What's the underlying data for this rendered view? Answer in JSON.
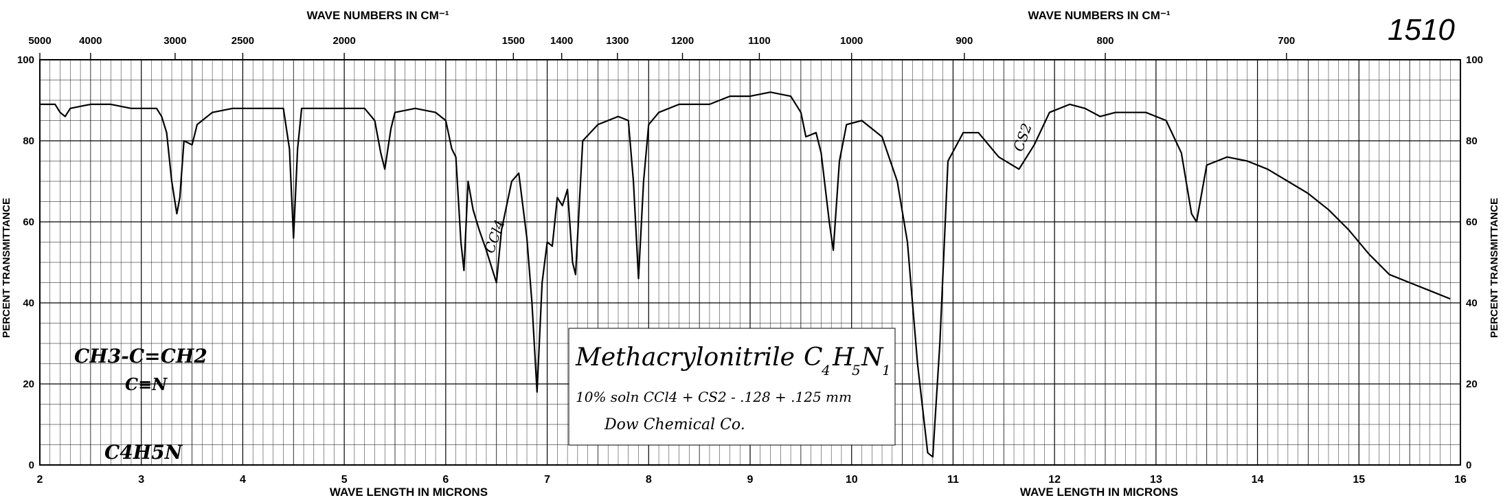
{
  "chart_data": {
    "type": "line",
    "title": "Methacrylonitrile C4H5N1",
    "x_unit_label_bottom": "WAVE LENGTH IN MICRONS",
    "x_unit_label_top": "WAVE NUMBERS IN CM⁻¹",
    "ylabel_left": "PERCENT TRANSMITTANCE",
    "ylabel_right": "PERCENT TRANSMITTANCE",
    "xlim": [
      2,
      16
    ],
    "ylim": [
      0,
      100
    ],
    "grid": true,
    "x_ticks": [
      2,
      3,
      4,
      5,
      6,
      7,
      8,
      9,
      10,
      11,
      12,
      13,
      14,
      15,
      16
    ],
    "y_ticks_left": [
      0,
      20,
      40,
      60,
      80,
      100
    ],
    "y_ticks_right": [
      0,
      20,
      40,
      60,
      80,
      100
    ],
    "top_ticks": [
      {
        "label": "5000",
        "wavenumber": 5000
      },
      {
        "label": "4000",
        "wavenumber": 4000
      },
      {
        "label": "3000",
        "wavenumber": 3000
      },
      {
        "label": "2500",
        "wavenumber": 2500
      },
      {
        "label": "2000",
        "wavenumber": 2000
      },
      {
        "label": "1500",
        "wavenumber": 1500
      },
      {
        "label": "1400",
        "wavenumber": 1400
      },
      {
        "label": "1300",
        "wavenumber": 1300
      },
      {
        "label": "1200",
        "wavenumber": 1200
      },
      {
        "label": "1100",
        "wavenumber": 1100
      },
      {
        "label": "1000",
        "wavenumber": 1000
      },
      {
        "label": "900",
        "wavenumber": 900
      },
      {
        "label": "800",
        "wavenumber": 800
      },
      {
        "label": "700",
        "wavenumber": 700
      }
    ],
    "series": [
      {
        "points": [
          [
            2.0,
            89
          ],
          [
            2.15,
            89
          ],
          [
            2.2,
            87
          ],
          [
            2.25,
            86
          ],
          [
            2.3,
            88
          ],
          [
            2.5,
            89
          ],
          [
            2.7,
            89
          ],
          [
            2.9,
            88
          ],
          [
            3.15,
            88
          ],
          [
            3.2,
            86
          ],
          [
            3.25,
            82
          ],
          [
            3.3,
            70
          ],
          [
            3.35,
            62
          ],
          [
            3.38,
            66
          ],
          [
            3.42,
            80
          ],
          [
            3.5,
            79
          ],
          [
            3.55,
            84
          ],
          [
            3.7,
            87
          ],
          [
            3.9,
            88
          ],
          [
            4.1,
            88
          ],
          [
            4.3,
            88
          ],
          [
            4.4,
            88
          ],
          [
            4.46,
            78
          ],
          [
            4.5,
            56
          ],
          [
            4.54,
            78
          ],
          [
            4.58,
            88
          ],
          [
            4.8,
            88
          ],
          [
            5.0,
            88
          ],
          [
            5.2,
            88
          ],
          [
            5.3,
            85
          ],
          [
            5.36,
            77
          ],
          [
            5.4,
            73
          ],
          [
            5.46,
            83
          ],
          [
            5.5,
            87
          ],
          [
            5.7,
            88
          ],
          [
            5.9,
            87
          ],
          [
            6.0,
            85
          ],
          [
            6.06,
            78
          ],
          [
            6.1,
            76
          ],
          [
            6.15,
            55
          ],
          [
            6.18,
            48
          ],
          [
            6.22,
            70
          ],
          [
            6.27,
            63
          ],
          [
            6.33,
            58
          ],
          [
            6.4,
            53
          ],
          [
            6.45,
            49
          ],
          [
            6.5,
            45
          ],
          [
            6.55,
            58
          ],
          [
            6.65,
            70
          ],
          [
            6.72,
            72
          ],
          [
            6.8,
            56
          ],
          [
            6.85,
            40
          ],
          [
            6.9,
            18
          ],
          [
            6.95,
            45
          ],
          [
            7.0,
            55
          ],
          [
            7.05,
            54
          ],
          [
            7.1,
            66
          ],
          [
            7.15,
            64
          ],
          [
            7.2,
            68
          ],
          [
            7.25,
            50
          ],
          [
            7.28,
            47
          ],
          [
            7.35,
            80
          ],
          [
            7.5,
            84
          ],
          [
            7.7,
            86
          ],
          [
            7.8,
            85
          ],
          [
            7.85,
            70
          ],
          [
            7.9,
            46
          ],
          [
            7.95,
            70
          ],
          [
            8.0,
            84
          ],
          [
            8.1,
            87
          ],
          [
            8.3,
            89
          ],
          [
            8.6,
            89
          ],
          [
            8.8,
            91
          ],
          [
            9.0,
            91
          ],
          [
            9.2,
            92
          ],
          [
            9.4,
            91
          ],
          [
            9.5,
            87
          ],
          [
            9.55,
            81
          ],
          [
            9.65,
            82
          ],
          [
            9.7,
            77
          ],
          [
            9.78,
            60
          ],
          [
            9.82,
            53
          ],
          [
            9.88,
            75
          ],
          [
            9.95,
            84
          ],
          [
            10.1,
            85
          ],
          [
            10.3,
            81
          ],
          [
            10.45,
            70
          ],
          [
            10.55,
            55
          ],
          [
            10.65,
            25
          ],
          [
            10.75,
            3
          ],
          [
            10.8,
            2
          ],
          [
            10.87,
            30
          ],
          [
            10.95,
            75
          ],
          [
            11.1,
            82
          ],
          [
            11.25,
            82
          ],
          [
            11.45,
            76
          ],
          [
            11.65,
            73
          ],
          [
            11.8,
            79
          ],
          [
            11.95,
            87
          ],
          [
            12.15,
            89
          ],
          [
            12.3,
            88
          ],
          [
            12.45,
            86
          ],
          [
            12.6,
            87
          ],
          [
            12.9,
            87
          ],
          [
            13.1,
            85
          ],
          [
            13.25,
            77
          ],
          [
            13.35,
            62
          ],
          [
            13.4,
            60
          ],
          [
            13.5,
            74
          ],
          [
            13.7,
            76
          ],
          [
            13.9,
            75
          ],
          [
            14.1,
            73
          ],
          [
            14.3,
            70
          ],
          [
            14.5,
            67
          ],
          [
            14.7,
            63
          ],
          [
            14.9,
            58
          ],
          [
            15.1,
            52
          ],
          [
            15.3,
            47
          ],
          [
            15.5,
            45
          ],
          [
            15.7,
            43
          ],
          [
            15.9,
            41
          ]
        ]
      }
    ]
  },
  "annotations": {
    "catalog_number": "1510",
    "title_line1": "Methacrylonitrile",
    "formula_c": "C",
    "formula_c_sub": "4",
    "formula_h": "H",
    "formula_h_sub": "5",
    "formula_n": "N",
    "formula_n_sub": "1",
    "conditions": "10% soln CCl4 + CS2 - .128 + .125 mm",
    "source": "Dow Chemical Co.",
    "structure_line1": "CH3-C=CH2",
    "structure_line2": "C≡N",
    "molecular_formula": "C4H5N",
    "band_label_ccl4": "CCl4",
    "band_label_cs2": "CS2"
  }
}
